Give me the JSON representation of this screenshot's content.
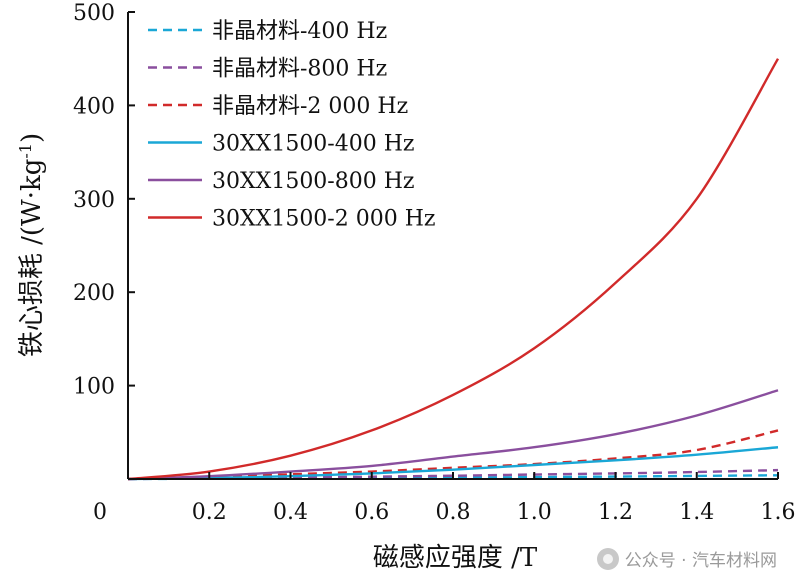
{
  "chart_data": {
    "type": "line",
    "title": "",
    "xlabel": "磁感应强度 /T",
    "ylabel": "铁心损耗 /(W·kg",
    "ylabel_sup": "-1",
    "ylabel_close": ")",
    "xlim": [
      0,
      1.6
    ],
    "ylim": [
      0,
      500
    ],
    "x_ticks": [
      0.2,
      0.4,
      0.6,
      0.8,
      1.0,
      1.2,
      1.4,
      1.6
    ],
    "x_tick_labels": [
      "0.2",
      "0.4",
      "0.6",
      "0.8",
      "1.0",
      "1.2",
      "1.4",
      "1.6"
    ],
    "y_ticks": [
      100,
      200,
      300,
      400,
      500
    ],
    "y_tick_labels": [
      "100",
      "200",
      "300",
      "400",
      "500"
    ],
    "origin_label": "0",
    "legend_position": "top-left",
    "x": [
      0,
      0.2,
      0.4,
      0.6,
      0.8,
      1.0,
      1.2,
      1.4,
      1.6
    ],
    "series": [
      {
        "name": "非晶材料-400 Hz",
        "color": "#1aa7d6",
        "dashed": true,
        "values": [
          0,
          0.3,
          0.6,
          1.0,
          1.5,
          2.0,
          2.6,
          3.3,
          4.0
        ]
      },
      {
        "name": "非晶材料-800 Hz",
        "color": "#8a4f9e",
        "dashed": true,
        "values": [
          0,
          0.6,
          1.5,
          2.5,
          3.5,
          4.8,
          6.0,
          7.5,
          9.5
        ]
      },
      {
        "name": "非晶材料-2 000 Hz",
        "color": "#d12a2a",
        "dashed": true,
        "values": [
          0,
          2.0,
          5.0,
          8.0,
          12.0,
          16.0,
          22.0,
          31.0,
          52.0
        ]
      },
      {
        "name": "30XX1500-400 Hz",
        "color": "#1aa7d6",
        "dashed": false,
        "values": [
          0,
          1.0,
          3.0,
          6.0,
          10.0,
          15.0,
          20.0,
          26.0,
          34.0
        ]
      },
      {
        "name": "30XX1500-800 Hz",
        "color": "#8a4f9e",
        "dashed": false,
        "values": [
          0,
          3.0,
          8.0,
          14.0,
          24.0,
          34.0,
          48.0,
          68.0,
          95.0
        ]
      },
      {
        "name": "30XX1500-2 000 Hz",
        "color": "#d12a2a",
        "dashed": false,
        "values": [
          0,
          8.0,
          25.0,
          52.0,
          90.0,
          140.0,
          210.0,
          300.0,
          450.0
        ]
      }
    ]
  },
  "watermark": {
    "icon": "wechat-icon",
    "text": "公众号 · 汽车材料网"
  }
}
